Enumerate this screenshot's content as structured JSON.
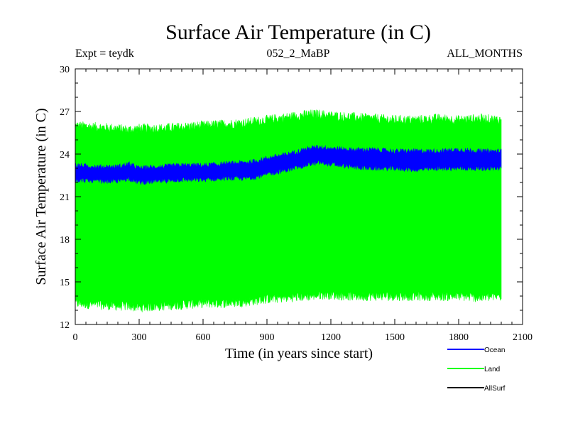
{
  "chart_data": {
    "type": "area",
    "title": "Surface Air Temperature (in C)",
    "subtitle_left": "Expt = teydk",
    "subtitle_center": "052_2_MaBP",
    "subtitle_right": "ALL_MONTHS",
    "xlabel": "Time (in years since start)",
    "ylabel": "Surface Air Temperature (in C)",
    "xlim": [
      0,
      2100
    ],
    "ylim": [
      12,
      30
    ],
    "x_ticks": [
      "0",
      "300",
      "600",
      "900",
      "1200",
      "1500",
      "1800",
      "2100"
    ],
    "y_ticks": [
      "12",
      "15",
      "18",
      "21",
      "24",
      "27",
      "30"
    ],
    "x": [
      0,
      100,
      200,
      250,
      300,
      400,
      500,
      600,
      700,
      800,
      850,
      900,
      1000,
      1100,
      1150,
      1200,
      1300,
      1400,
      1500,
      1600,
      1700,
      1800,
      1900,
      2000
    ],
    "series": [
      {
        "name": "Land",
        "color": "#00ff00",
        "upper": [
          26.0,
          25.9,
          25.8,
          25.7,
          25.8,
          25.8,
          25.9,
          26.0,
          26.1,
          26.2,
          26.3,
          26.4,
          26.6,
          26.8,
          26.8,
          26.7,
          26.6,
          26.5,
          26.4,
          26.4,
          26.5,
          26.4,
          26.5,
          26.4
        ],
        "lower": [
          13.5,
          13.4,
          13.3,
          13.3,
          13.2,
          13.3,
          13.4,
          13.5,
          13.5,
          13.6,
          13.7,
          13.8,
          13.9,
          14.0,
          14.1,
          14.1,
          14.0,
          14.0,
          14.0,
          14.0,
          14.0,
          14.0,
          13.9,
          14.0
        ]
      },
      {
        "name": "Ocean",
        "color": "#0000ff",
        "upper": [
          23.2,
          23.1,
          23.1,
          23.3,
          23.0,
          23.1,
          23.2,
          23.2,
          23.3,
          23.4,
          23.5,
          23.7,
          24.0,
          24.4,
          24.5,
          24.4,
          24.3,
          24.3,
          24.2,
          24.2,
          24.2,
          24.3,
          24.2,
          24.2
        ],
        "lower": [
          22.2,
          22.1,
          22.1,
          22.3,
          22.0,
          22.1,
          22.2,
          22.2,
          22.3,
          22.3,
          22.4,
          22.6,
          22.9,
          23.3,
          23.4,
          23.3,
          23.1,
          23.0,
          23.0,
          22.9,
          23.0,
          23.0,
          23.0,
          23.0
        ]
      },
      {
        "name": "AllSurf",
        "color": "#000000",
        "upper": [],
        "lower": []
      }
    ],
    "legend_position": "bottom-right"
  }
}
